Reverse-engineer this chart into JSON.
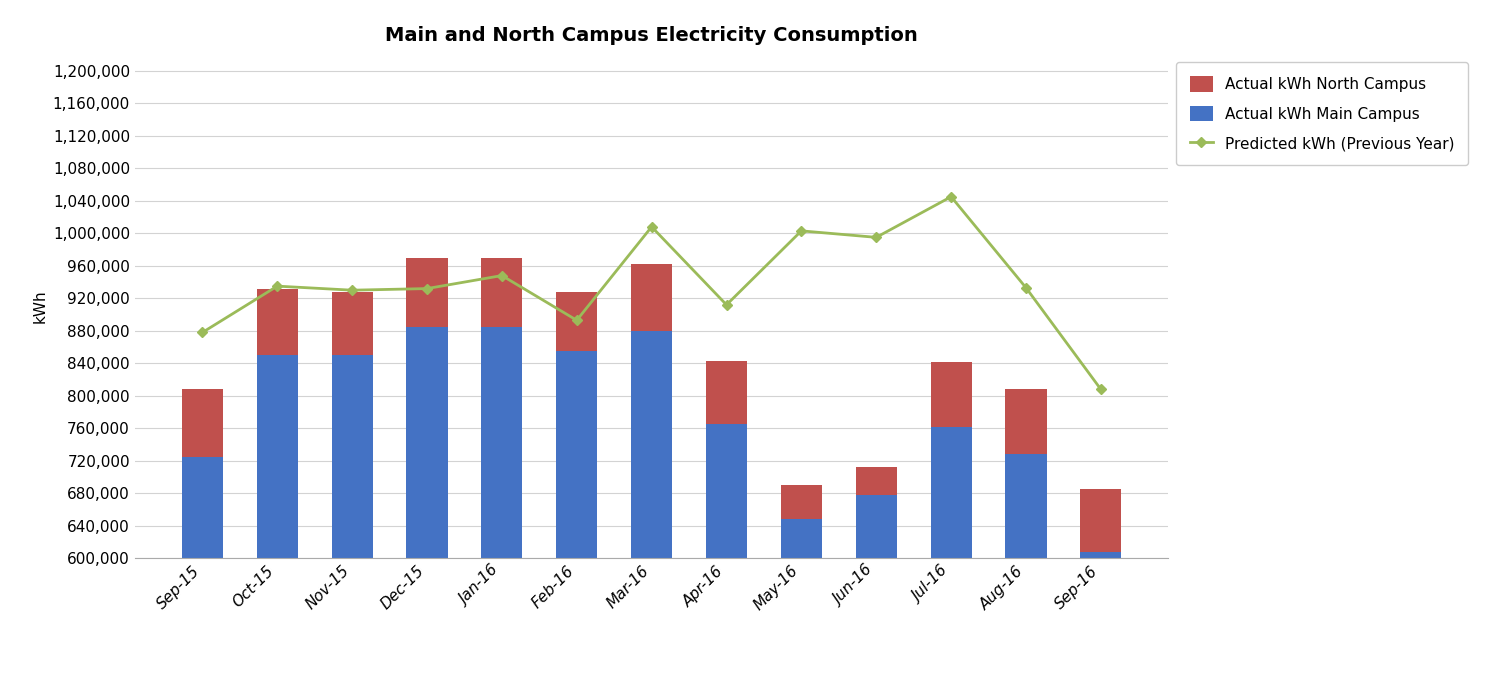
{
  "title": "Main and North Campus Electricity Consumption",
  "categories": [
    "Sep-15",
    "Oct-15",
    "Nov-15",
    "Dec-15",
    "Jan-16",
    "Feb-16",
    "Mar-16",
    "Apr-16",
    "May-16",
    "Jun-16",
    "Jul-16",
    "Aug-16",
    "Sep-16"
  ],
  "main_campus": [
    725000,
    850000,
    850000,
    885000,
    885000,
    855000,
    880000,
    765000,
    648000,
    678000,
    762000,
    728000,
    608000
  ],
  "north_campus": [
    83000,
    82000,
    78000,
    85000,
    85000,
    73000,
    82000,
    78000,
    42000,
    35000,
    80000,
    80000,
    78000
  ],
  "predicted": [
    878000,
    935000,
    930000,
    932000,
    948000,
    893000,
    1008000,
    912000,
    1003000,
    995000,
    1045000,
    933000,
    808000
  ],
  "bar_main_color": "#4472C4",
  "bar_north_color": "#C0504D",
  "line_color": "#9BBB59",
  "ylabel": "kWh",
  "ylim_min": 600000,
  "ylim_max": 1220000,
  "ytick_step": 40000,
  "legend_labels_order": [
    "Actual kWh North Campus",
    "Actual kWh Main Campus",
    "Predicted kWh (Previous Year)"
  ],
  "background_color": "#FFFFFF",
  "grid_color": "#D3D3D3",
  "bar_width": 0.55,
  "title_fontsize": 14,
  "axis_fontsize": 11,
  "legend_fontsize": 11
}
